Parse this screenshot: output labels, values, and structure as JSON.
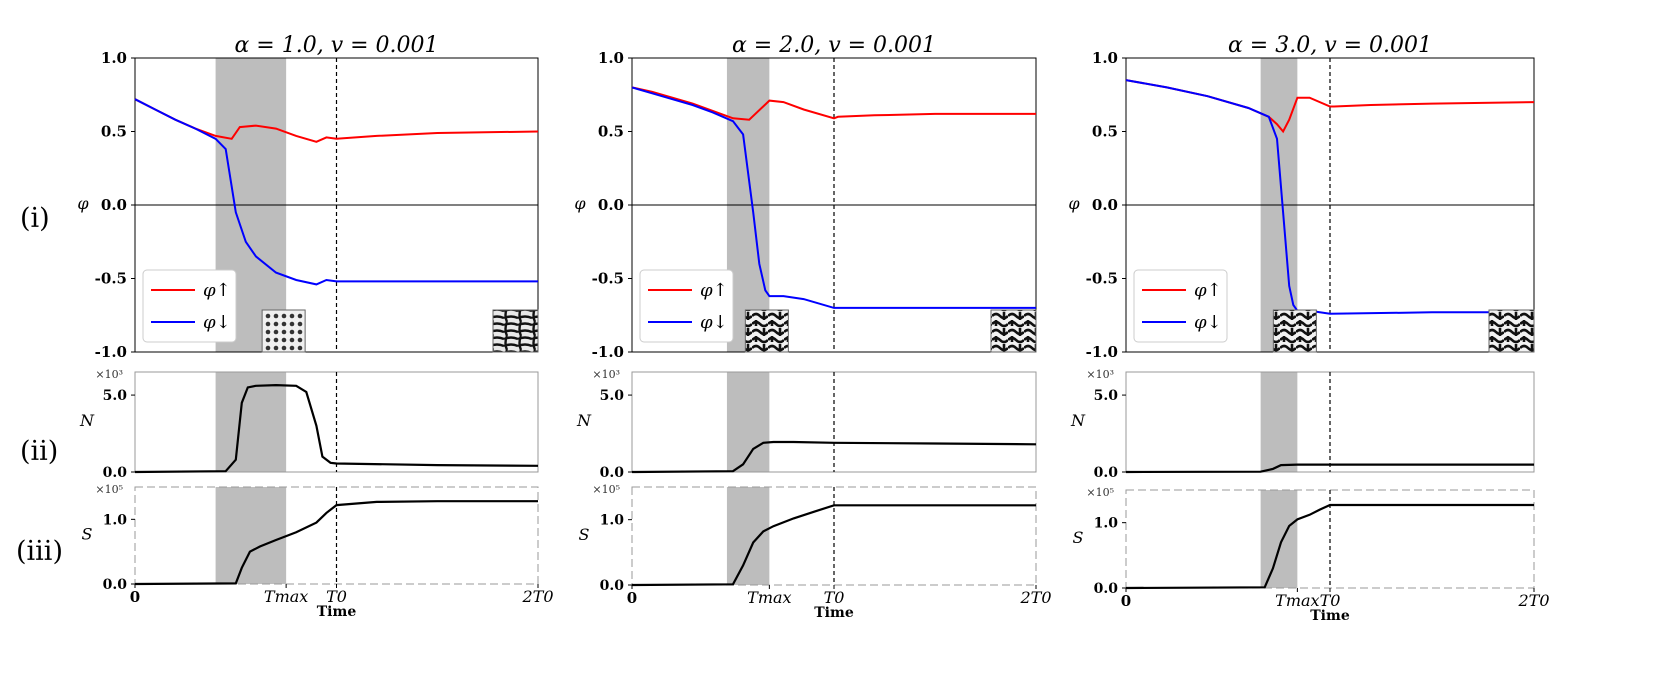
{
  "row_labels": [
    "(i)",
    "(ii)",
    "(iii)"
  ],
  "panel_labels": {
    "phi_ylabel": "φ",
    "n_ylabel": "N",
    "s_ylabel": "S",
    "n_multiplier": "×10³",
    "s_multiplier": "×10⁵",
    "xlabel": "Time",
    "x_ticks": [
      "0",
      "Tmax",
      "T0",
      "2T0"
    ],
    "legend_up": "φ↑",
    "legend_down": "φ↓"
  },
  "chart_data": [
    {
      "type": "line",
      "title": "α = 1.0, v = 0.001",
      "x_unit": "T0",
      "xlim": [
        0,
        2
      ],
      "tmax": 0.75,
      "shaded_region": [
        0.4,
        0.75
      ],
      "phi": {
        "ylim": [
          -1.0,
          1.0
        ],
        "yticks": [
          1.0,
          0.5,
          0.0,
          -0.5,
          -1.0
        ],
        "series": [
          {
            "name": "φ↑",
            "color": "#ff0000",
            "x": [
              0,
              0.1,
              0.2,
              0.3,
              0.4,
              0.48,
              0.52,
              0.6,
              0.7,
              0.8,
              0.9,
              0.95,
              1.0,
              1.2,
              1.5,
              2.0
            ],
            "y": [
              0.72,
              0.65,
              0.58,
              0.52,
              0.47,
              0.45,
              0.53,
              0.54,
              0.52,
              0.47,
              0.43,
              0.46,
              0.45,
              0.47,
              0.49,
              0.5
            ]
          },
          {
            "name": "φ↓",
            "color": "#0000ff",
            "x": [
              0,
              0.1,
              0.2,
              0.3,
              0.4,
              0.45,
              0.5,
              0.55,
              0.6,
              0.7,
              0.8,
              0.9,
              0.95,
              1.0,
              1.5,
              2.0
            ],
            "y": [
              0.72,
              0.65,
              0.58,
              0.52,
              0.45,
              0.38,
              -0.05,
              -0.25,
              -0.35,
              -0.46,
              -0.51,
              -0.54,
              -0.51,
              -0.52,
              -0.52,
              -0.52
            ]
          }
        ]
      },
      "N": {
        "ylim": [
          0,
          6.5
        ],
        "yticks": [
          0.0,
          5.0
        ],
        "series": [
          {
            "name": "N",
            "color": "#000000",
            "x": [
              0,
              0.45,
              0.5,
              0.53,
              0.56,
              0.6,
              0.7,
              0.8,
              0.85,
              0.9,
              0.93,
              0.97,
              1.0,
              1.5,
              2.0
            ],
            "y": [
              0,
              0.05,
              0.8,
              4.5,
              5.5,
              5.6,
              5.65,
              5.6,
              5.2,
              3.0,
              1.0,
              0.6,
              0.55,
              0.45,
              0.4
            ]
          }
        ]
      },
      "S": {
        "ylim": [
          0,
          1.5
        ],
        "yticks": [
          0.0,
          1.0
        ],
        "series": [
          {
            "name": "S",
            "color": "#000000",
            "x": [
              0,
              0.5,
              0.53,
              0.57,
              0.62,
              0.7,
              0.8,
              0.9,
              0.95,
              1.0,
              1.2,
              1.5,
              2.0
            ],
            "y": [
              0,
              0.01,
              0.25,
              0.5,
              0.58,
              0.68,
              0.8,
              0.95,
              1.1,
              1.22,
              1.27,
              1.28,
              1.28
            ]
          }
        ]
      },
      "inset_patterns": [
        "dots",
        "maze"
      ]
    },
    {
      "type": "line",
      "title": "α = 2.0, v = 0.001",
      "x_unit": "T0",
      "xlim": [
        0,
        2
      ],
      "tmax": 0.68,
      "shaded_region": [
        0.47,
        0.68
      ],
      "phi": {
        "ylim": [
          -1.0,
          1.0
        ],
        "yticks": [
          1.0,
          0.5,
          0.0,
          -0.5,
          -1.0
        ],
        "series": [
          {
            "name": "φ↑",
            "color": "#ff0000",
            "x": [
              0,
              0.1,
              0.2,
              0.3,
              0.4,
              0.5,
              0.58,
              0.68,
              0.75,
              0.85,
              1.0,
              1.02,
              1.2,
              1.5,
              2.0
            ],
            "y": [
              0.8,
              0.77,
              0.73,
              0.69,
              0.64,
              0.59,
              0.58,
              0.71,
              0.7,
              0.65,
              0.59,
              0.6,
              0.61,
              0.62,
              0.62
            ]
          },
          {
            "name": "φ↓",
            "color": "#0000ff",
            "x": [
              0,
              0.1,
              0.2,
              0.3,
              0.4,
              0.5,
              0.55,
              0.6,
              0.63,
              0.66,
              0.68,
              0.75,
              0.85,
              1.0,
              1.5,
              2.0
            ],
            "y": [
              0.8,
              0.76,
              0.72,
              0.68,
              0.63,
              0.57,
              0.48,
              -0.05,
              -0.4,
              -0.58,
              -0.62,
              -0.62,
              -0.64,
              -0.7,
              -0.7,
              -0.7
            ]
          }
        ]
      },
      "N": {
        "ylim": [
          0,
          6.5
        ],
        "yticks": [
          0.0,
          5.0
        ],
        "series": [
          {
            "name": "N",
            "color": "#000000",
            "x": [
              0,
              0.5,
              0.55,
              0.6,
              0.65,
              0.7,
              0.8,
              1.0,
              1.5,
              2.0
            ],
            "y": [
              0,
              0.05,
              0.5,
              1.5,
              1.9,
              1.95,
              1.95,
              1.9,
              1.85,
              1.8
            ]
          }
        ]
      },
      "S": {
        "ylim": [
          0,
          1.5
        ],
        "yticks": [
          0.0,
          1.0
        ],
        "series": [
          {
            "name": "S",
            "color": "#000000",
            "x": [
              0,
              0.5,
              0.55,
              0.6,
              0.65,
              0.7,
              0.8,
              0.9,
              1.0,
              1.2,
              1.5,
              2.0
            ],
            "y": [
              0,
              0.01,
              0.3,
              0.65,
              0.82,
              0.9,
              1.02,
              1.12,
              1.22,
              1.22,
              1.22,
              1.22
            ]
          }
        ]
      },
      "inset_patterns": [
        "stripes",
        "stripes"
      ]
    },
    {
      "type": "line",
      "title": "α = 3.0, v = 0.001",
      "x_unit": "T0",
      "xlim": [
        0,
        2
      ],
      "tmax": 0.84,
      "shaded_region": [
        0.66,
        0.84
      ],
      "phi": {
        "ylim": [
          -1.0,
          1.0
        ],
        "yticks": [
          1.0,
          0.5,
          0.0,
          -0.5,
          -1.0
        ],
        "series": [
          {
            "name": "φ↑",
            "color": "#ff0000",
            "x": [
              0,
              0.2,
              0.4,
              0.6,
              0.7,
              0.74,
              0.77,
              0.8,
              0.84,
              0.9,
              1.0,
              1.02,
              1.2,
              1.5,
              2.0
            ],
            "y": [
              0.85,
              0.8,
              0.74,
              0.66,
              0.6,
              0.55,
              0.5,
              0.58,
              0.73,
              0.73,
              0.67,
              0.67,
              0.68,
              0.69,
              0.7
            ]
          },
          {
            "name": "φ↓",
            "color": "#0000ff",
            "x": [
              0,
              0.2,
              0.4,
              0.6,
              0.7,
              0.74,
              0.77,
              0.8,
              0.82,
              0.84,
              0.9,
              1.0,
              1.5,
              2.0
            ],
            "y": [
              0.85,
              0.8,
              0.74,
              0.66,
              0.6,
              0.45,
              -0.05,
              -0.55,
              -0.68,
              -0.72,
              -0.72,
              -0.74,
              -0.73,
              -0.73
            ]
          }
        ]
      },
      "N": {
        "ylim": [
          0,
          6.5
        ],
        "yticks": [
          0.0,
          5.0
        ],
        "series": [
          {
            "name": "N",
            "color": "#000000",
            "x": [
              0,
              0.66,
              0.72,
              0.76,
              0.84,
              1.0,
              1.5,
              2.0
            ],
            "y": [
              0,
              0.02,
              0.2,
              0.45,
              0.48,
              0.48,
              0.48,
              0.48
            ]
          }
        ]
      },
      "S": {
        "ylim": [
          0,
          1.5
        ],
        "yticks": [
          0.0,
          1.0
        ],
        "series": [
          {
            "name": "S",
            "color": "#000000",
            "x": [
              0,
              0.68,
              0.72,
              0.76,
              0.8,
              0.84,
              0.9,
              0.95,
              1.0,
              1.5,
              2.0
            ],
            "y": [
              0,
              0.01,
              0.3,
              0.7,
              0.95,
              1.05,
              1.12,
              1.2,
              1.27,
              1.27,
              1.27
            ]
          }
        ]
      },
      "inset_patterns": [
        "stripes",
        "stripes"
      ]
    }
  ]
}
